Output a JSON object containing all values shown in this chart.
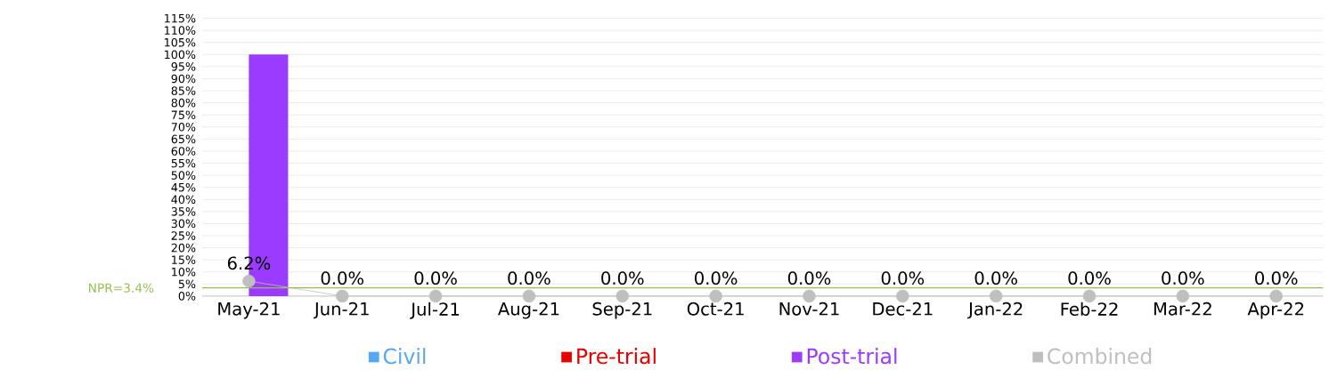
{
  "chart_data": {
    "type": "bar",
    "categories": [
      "May-21",
      "Jun-21",
      "Jul-21",
      "Aug-21",
      "Sep-21",
      "Oct-21",
      "Nov-21",
      "Dec-21",
      "Jan-22",
      "Feb-22",
      "Mar-22",
      "Apr-22"
    ],
    "series": [
      {
        "name": "Civil",
        "color": "#56a8f2",
        "values": [
          null,
          null,
          null,
          null,
          null,
          null,
          null,
          null,
          null,
          null,
          null,
          null
        ]
      },
      {
        "name": "Pre-trial",
        "color": "#e60000",
        "values": [
          null,
          null,
          null,
          null,
          null,
          null,
          null,
          null,
          null,
          null,
          null,
          null
        ]
      },
      {
        "name": "Post-trial",
        "color": "#9b3bff",
        "values": [
          100,
          null,
          null,
          null,
          null,
          null,
          null,
          null,
          null,
          null,
          null,
          null
        ]
      },
      {
        "name": "Combined",
        "type": "line",
        "color": "#bfbfbf",
        "marker": "circle",
        "values": [
          6.2,
          0,
          0,
          0,
          0,
          0,
          0,
          0,
          0,
          0,
          0,
          0
        ],
        "value_labels": [
          "6.2%",
          "0.0%",
          "0.0%",
          "0.0%",
          "0.0%",
          "0.0%",
          "0.0%",
          "0.0%",
          "0.0%",
          "0.0%",
          "0.0%",
          "0.0%"
        ]
      }
    ],
    "ylim": [
      0,
      115
    ],
    "yticks": [
      {
        "value": 0,
        "label": "0%"
      },
      {
        "value": 5,
        "label": "5%"
      },
      {
        "value": 10,
        "label": "10%"
      },
      {
        "value": 15,
        "label": "15%"
      },
      {
        "value": 20,
        "label": "20%"
      },
      {
        "value": 25,
        "label": "25%"
      },
      {
        "value": 30,
        "label": "30%"
      },
      {
        "value": 35,
        "label": "35%"
      },
      {
        "value": 40,
        "label": "40%"
      },
      {
        "value": 45,
        "label": "45%"
      },
      {
        "value": 50,
        "label": "50%"
      },
      {
        "value": 55,
        "label": "55%"
      },
      {
        "value": 60,
        "label": "60%"
      },
      {
        "value": 65,
        "label": "65%"
      },
      {
        "value": 70,
        "label": "70%"
      },
      {
        "value": 75,
        "label": "75%"
      },
      {
        "value": 80,
        "label": "80%"
      },
      {
        "value": 85,
        "label": "85%"
      },
      {
        "value": 90,
        "label": "90%"
      },
      {
        "value": 95,
        "label": "95%"
      },
      {
        "value": 100,
        "label": "100%"
      },
      {
        "value": 105,
        "label": "105%"
      },
      {
        "value": 110,
        "label": "110%"
      },
      {
        "value": 115,
        "label": "115%"
      }
    ],
    "ref_lines": [
      {
        "axis": "y",
        "value": 3.4,
        "label": "NPR=3.4%",
        "color": "#92c050"
      }
    ],
    "grid": "y",
    "legend": "bottom"
  }
}
